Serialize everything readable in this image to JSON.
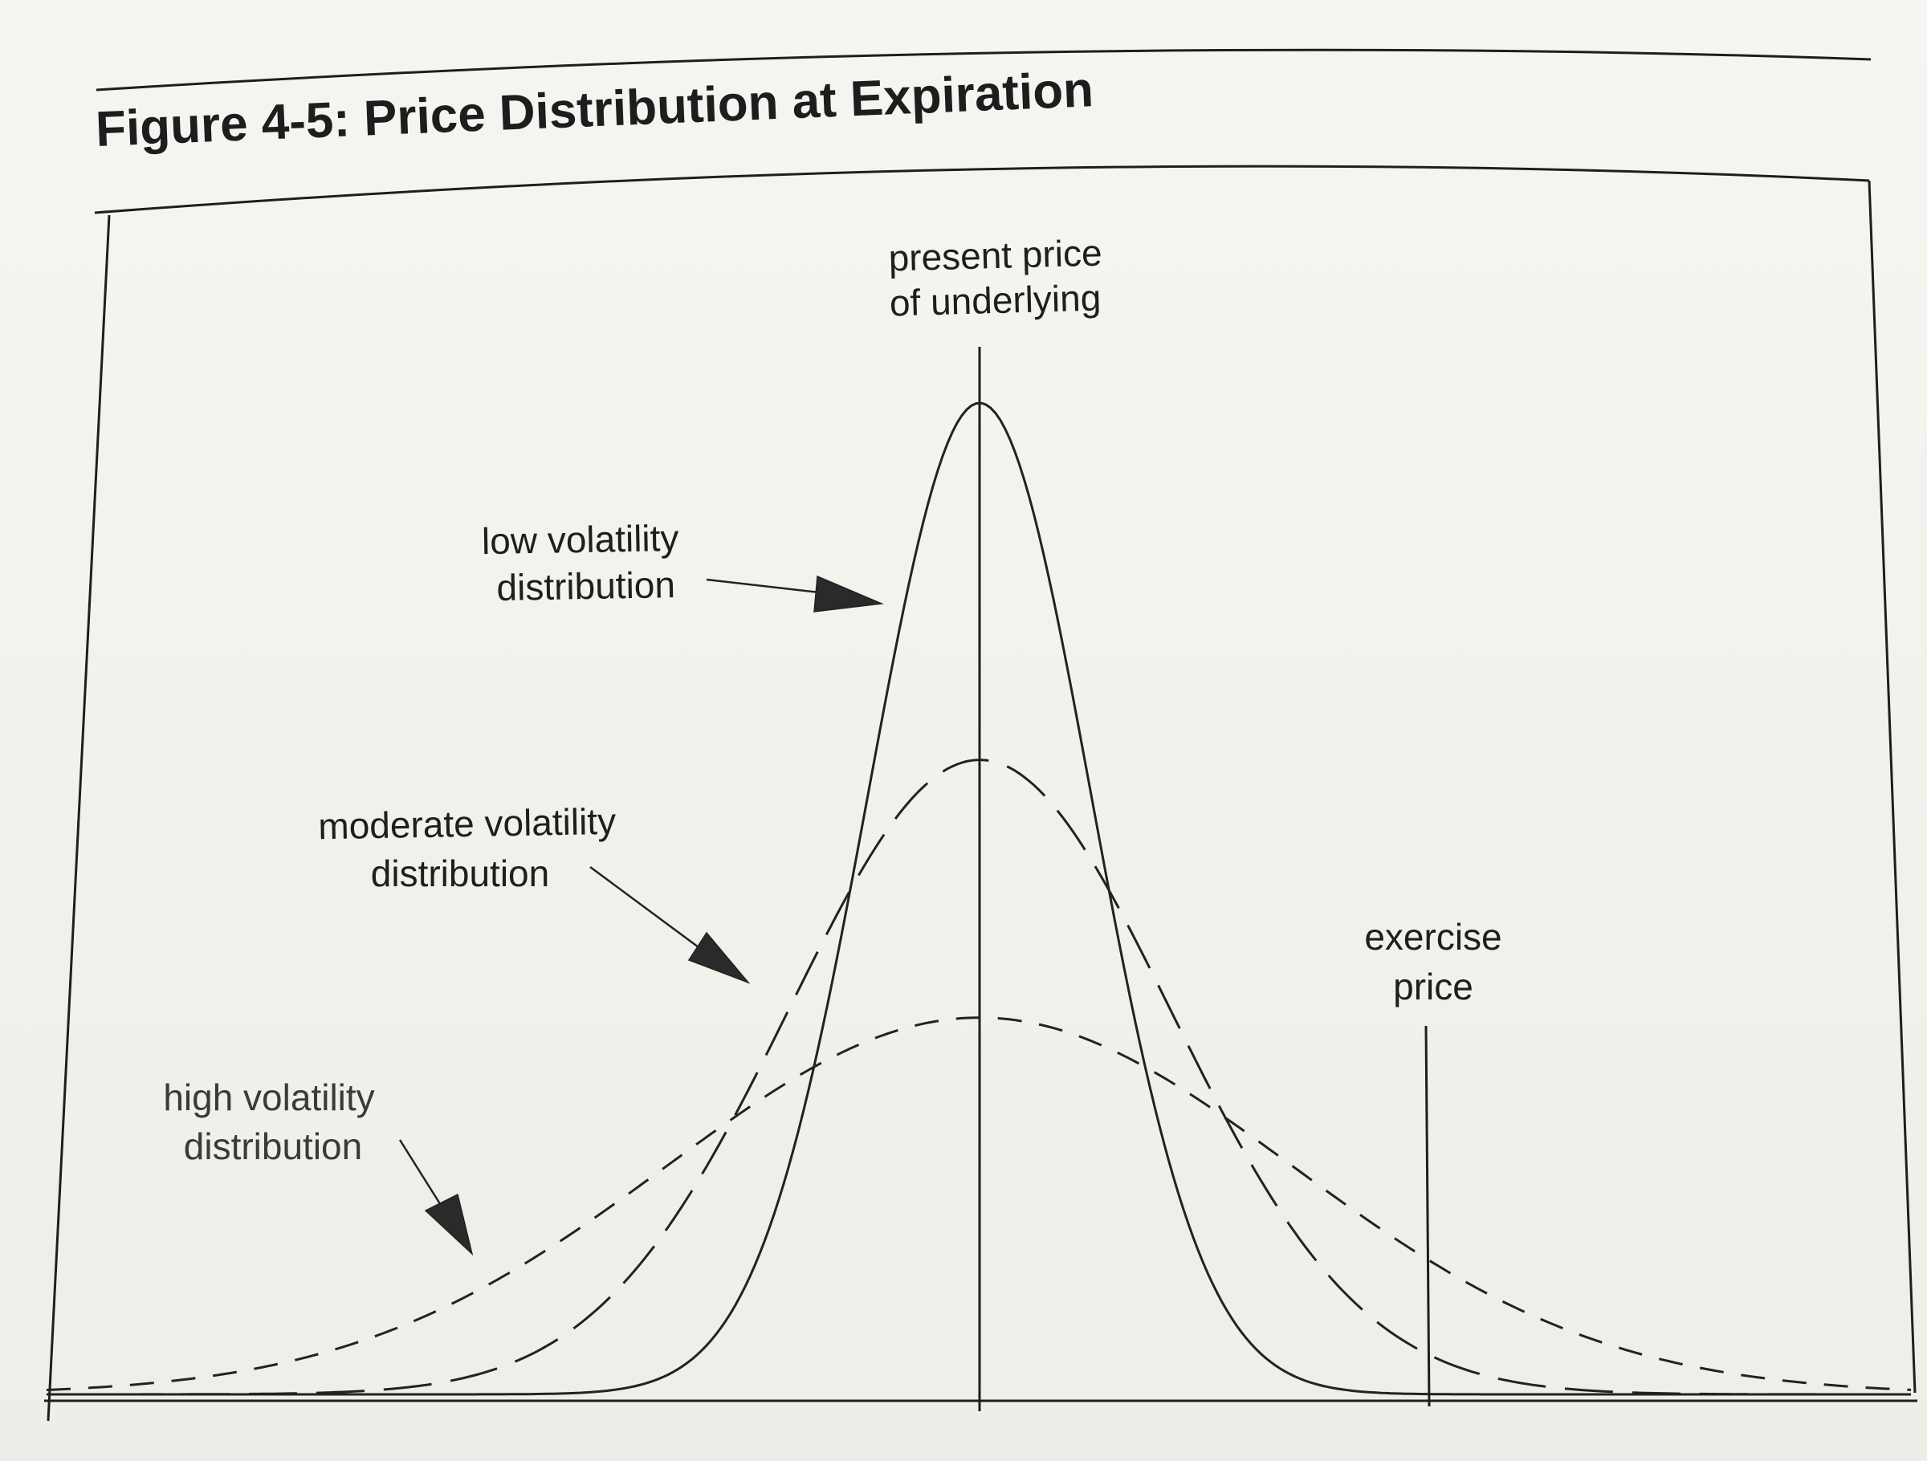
{
  "figure": {
    "title": "Figure 4-5: Price Distribution at Expiration"
  },
  "labels": {
    "present_price": [
      "present price",
      "of underlying"
    ],
    "exercise_price": [
      "exercise",
      "price"
    ],
    "low_volatility": [
      "low volatility",
      "distribution"
    ],
    "moderate_volatility": [
      "moderate volatility",
      "distribution"
    ],
    "high_volatility": [
      "high volatility",
      "distribution"
    ]
  },
  "diagram": {
    "curves": [
      {
        "key": "low",
        "line_style": "solid",
        "relative_peak": 1.0,
        "relative_spread": 0.42
      },
      {
        "key": "moderate",
        "line_style": "long-dash",
        "relative_peak": 0.64,
        "relative_spread": 0.72
      },
      {
        "key": "high",
        "line_style": "short-dash",
        "relative_peak": 0.38,
        "relative_spread": 1.18
      }
    ],
    "colors": {
      "ink": "#1e1e1e",
      "paper": "#f3f1ec"
    }
  }
}
